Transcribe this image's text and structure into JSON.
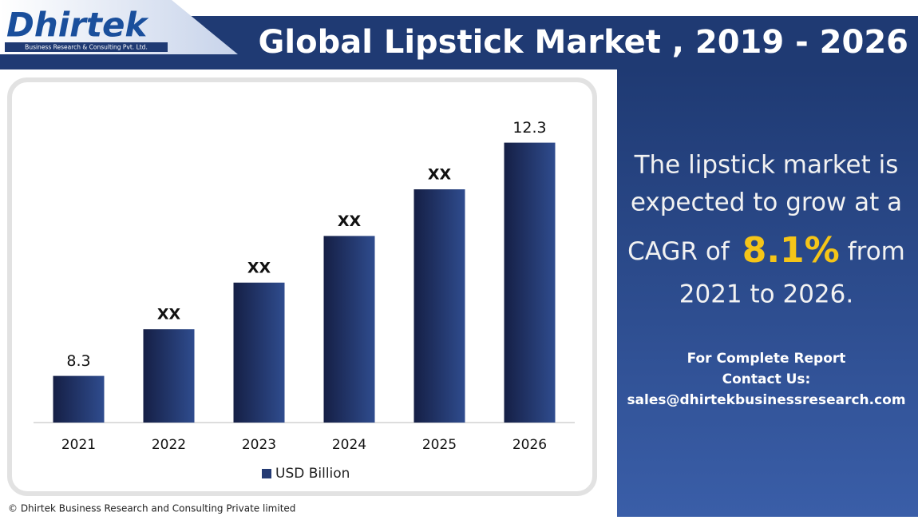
{
  "header": {
    "logo": "Dhirtek",
    "logo_tagline": "Business Research & Consulting Pvt. Ltd.",
    "title": "Global Lipstick Market , 2019 - 2026"
  },
  "chart_data": {
    "type": "bar",
    "categories": [
      "2021",
      "2022",
      "2023",
      "2024",
      "2025",
      "2026"
    ],
    "series": [
      {
        "name": "USD Billion",
        "color": "#243a73",
        "values": [
          8.3,
          9.1,
          9.9,
          10.7,
          11.5,
          12.3
        ],
        "value_labels": [
          "8.3",
          "XX",
          "XX",
          "XX",
          "XX",
          "12.3"
        ]
      }
    ],
    "ylim": [
      7.5,
      13
    ],
    "grid": false,
    "legend": "bottom"
  },
  "callout": {
    "line1": "The lipstick market is",
    "line2": "expected to grow at a",
    "line3_start": "CAGR of",
    "highlight": "8.1%",
    "line3_end": "from",
    "line4": "2021 to 2026."
  },
  "contact": {
    "line1": "For Complete Report",
    "line2": "Contact Us:",
    "email": "sales@dhirtekbusinessresearch.com"
  },
  "footer": "© Dhirtek Business Research and Consulting Private limited"
}
